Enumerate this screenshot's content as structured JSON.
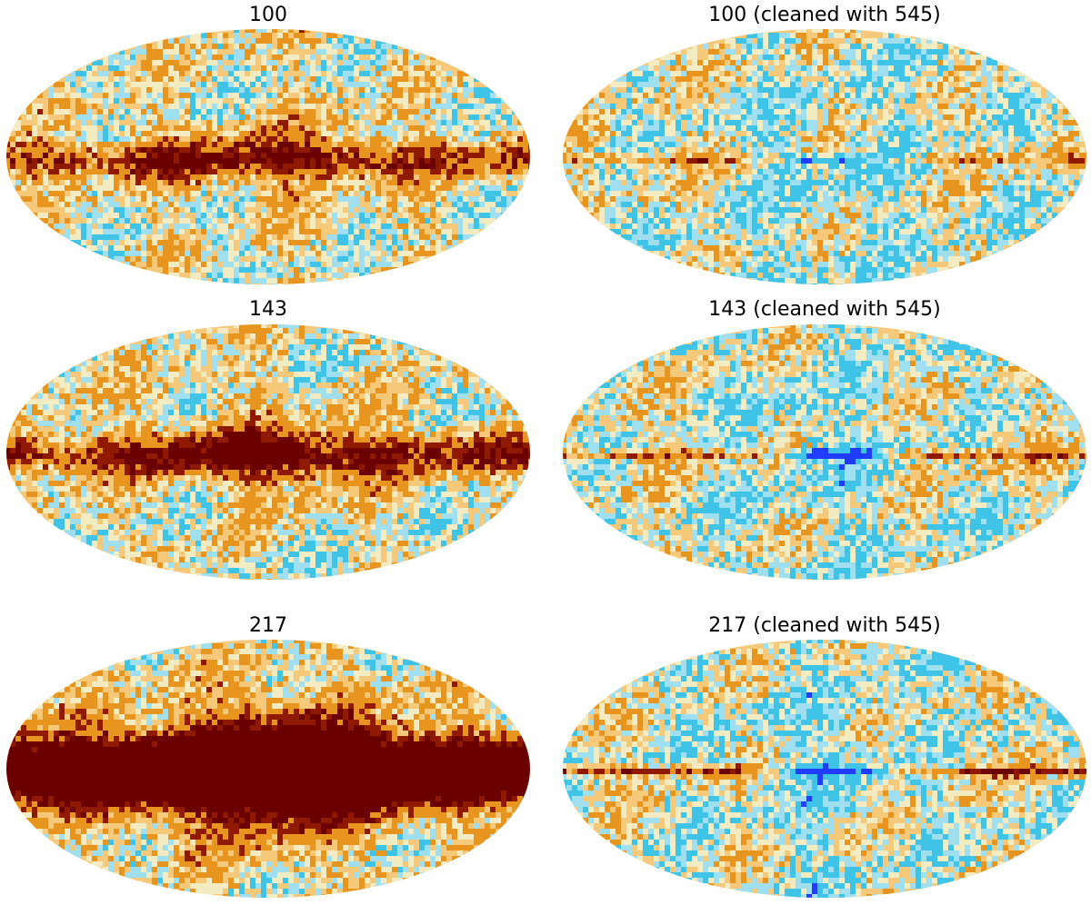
{
  "figure": {
    "panels": [
      {
        "id": "p100",
        "title": "100",
        "kind": "raw",
        "band": 0.9,
        "bulge": 0.8
      },
      {
        "id": "p100c",
        "title": "100 (cleaned with 545)",
        "kind": "cleaned",
        "band": 0.35,
        "bulge": 0.3
      },
      {
        "id": "p143",
        "title": "143",
        "kind": "raw",
        "band": 1.1,
        "bulge": 1.0
      },
      {
        "id": "p143c",
        "title": "143 (cleaned with 545)",
        "kind": "cleaned",
        "band": 0.45,
        "bulge": 0.5
      },
      {
        "id": "p217",
        "title": "217",
        "kind": "raw",
        "band": 2.6,
        "bulge": 2.4
      },
      {
        "id": "p217c",
        "title": "217 (cleaned with 545)",
        "kind": "cleaned",
        "band": 0.6,
        "bulge": 0.7
      }
    ],
    "colors": {
      "deep_red": "#6b0000",
      "dark_red": "#8f1a00",
      "orange": "#e8951f",
      "light_orange": "#f6c97a",
      "cream": "#f3ebc2",
      "cyan": "#3fc3e6",
      "light_cyan": "#9fdff0",
      "blue": "#1f3cff"
    }
  }
}
